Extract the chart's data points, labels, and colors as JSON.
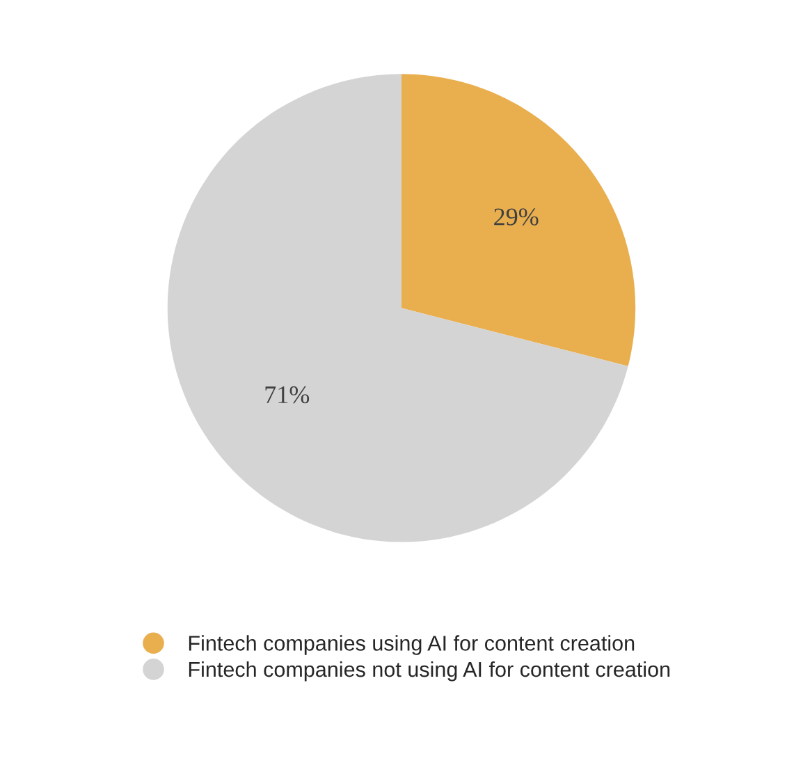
{
  "chart_data": {
    "type": "pie",
    "categories": [
      "Fintech companies using AI for content creation",
      "Fintech companies not using AI for content creation"
    ],
    "values": [
      29,
      71
    ],
    "colors": [
      "#e9af4f",
      "#d4d4d4"
    ],
    "value_labels": [
      "29%",
      "71%"
    ],
    "legend": "bottom"
  }
}
